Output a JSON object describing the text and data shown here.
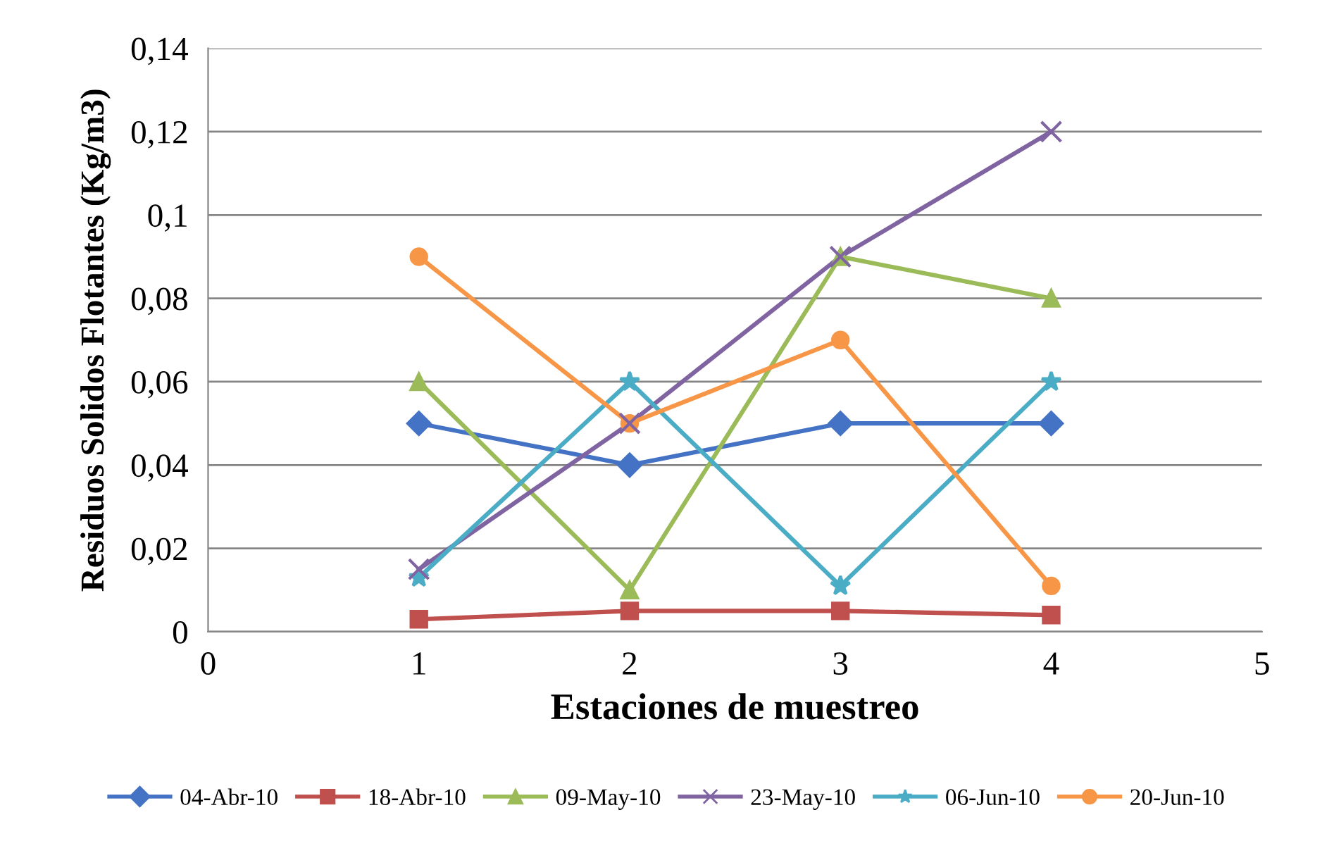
{
  "chart_data": {
    "type": "line",
    "xlabel": "Estaciones de muestreo",
    "ylabel": "Residuos Solidos Flotantes (Kg/m3)",
    "x": [
      1,
      2,
      3,
      4
    ],
    "xlim": [
      0,
      5
    ],
    "xticks": [
      0,
      1,
      2,
      3,
      4,
      5
    ],
    "ylim": [
      0,
      0.14
    ],
    "yticks": [
      {
        "value": 0,
        "label": "0"
      },
      {
        "value": 0.02,
        "label": "0,02"
      },
      {
        "value": 0.04,
        "label": "0,04"
      },
      {
        "value": 0.06,
        "label": "0,06"
      },
      {
        "value": 0.08,
        "label": "0,08"
      },
      {
        "value": 0.1,
        "label": "0,1"
      },
      {
        "value": 0.12,
        "label": "0,12"
      },
      {
        "value": 0.14,
        "label": "0,14"
      }
    ],
    "grid": "y",
    "legend": "bottom",
    "series": [
      {
        "name": "04-Abr-10",
        "color": "#4472c4",
        "marker": "diamond",
        "values": [
          0.05,
          0.04,
          0.05,
          0.05
        ]
      },
      {
        "name": "18-Abr-10",
        "color": "#c0504d",
        "marker": "square",
        "values": [
          0.003,
          0.005,
          0.005,
          0.004
        ]
      },
      {
        "name": "09-May-10",
        "color": "#9bbb59",
        "marker": "triangle",
        "values": [
          0.06,
          0.01,
          0.09,
          0.08
        ]
      },
      {
        "name": "23-May-10",
        "color": "#8064a2",
        "marker": "cross",
        "values": [
          0.015,
          0.05,
          0.09,
          0.12
        ]
      },
      {
        "name": "06-Jun-10",
        "color": "#4bacc6",
        "marker": "star",
        "values": [
          0.013,
          0.06,
          0.011,
          0.06
        ]
      },
      {
        "name": "20-Jun-10",
        "color": "#f79646",
        "marker": "circle",
        "values": [
          0.09,
          0.05,
          0.07,
          0.011
        ]
      }
    ]
  }
}
